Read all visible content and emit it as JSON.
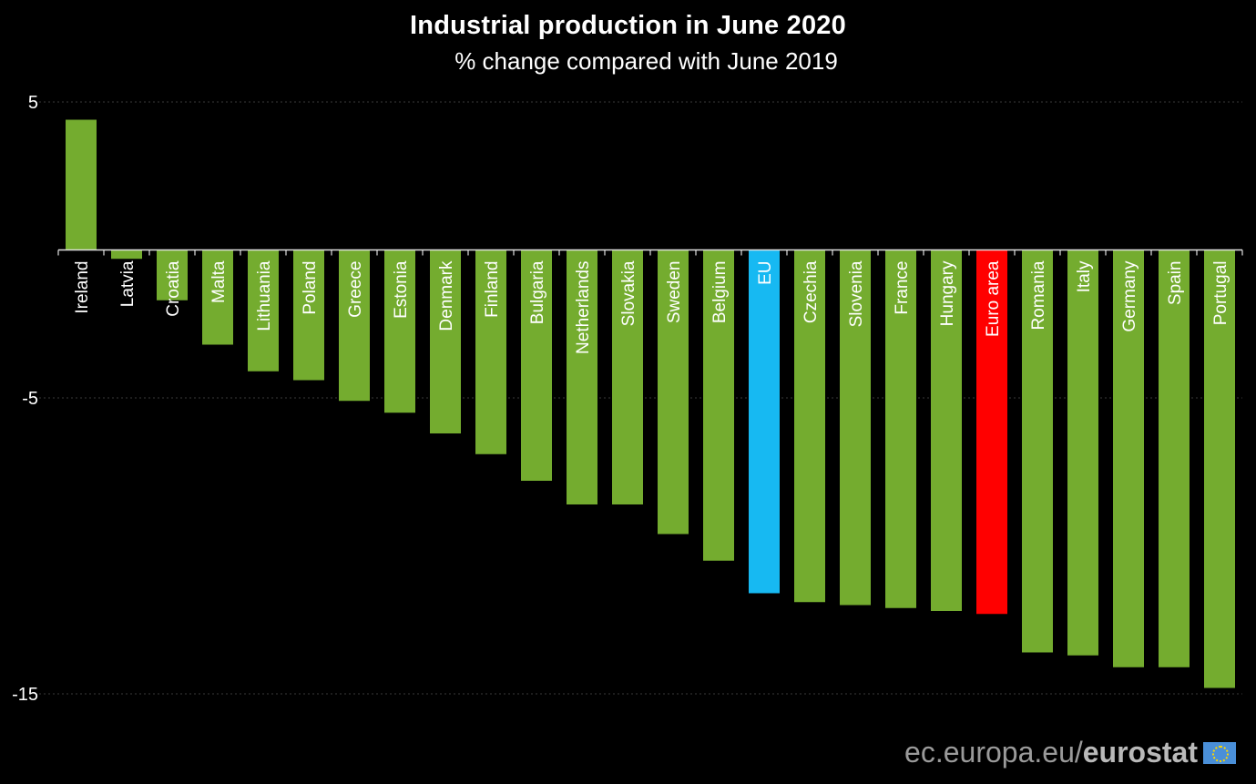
{
  "chart_data": {
    "type": "bar",
    "title": "Industrial production in June 2020",
    "subtitle": "% change compared with June 2019",
    "xlabel": "",
    "ylabel": "",
    "ylim": [
      -15,
      5
    ],
    "yticks": [
      5,
      -5,
      -15
    ],
    "grid": true,
    "categories": [
      "Ireland",
      "Latvia",
      "Croatia",
      "Malta",
      "Lithuania",
      "Poland",
      "Greece",
      "Estonia",
      "Denmark",
      "Finland",
      "Bulgaria",
      "Netherlands",
      "Slovakia",
      "Sweden",
      "Belgium",
      "EU",
      "Czechia",
      "Slovenia",
      "France",
      "Hungary",
      "Euro area",
      "Romania",
      "Italy",
      "Germany",
      "Spain",
      "Portugal"
    ],
    "values": [
      4.4,
      -0.3,
      -1.7,
      -3.2,
      -4.1,
      -4.4,
      -5.1,
      -5.5,
      -6.2,
      -6.9,
      -7.8,
      -8.6,
      -8.6,
      -9.6,
      -10.5,
      -11.6,
      -11.9,
      -12.0,
      -12.1,
      -12.2,
      -12.3,
      -13.6,
      -13.7,
      -14.1,
      -14.1,
      -14.8
    ],
    "colors": {
      "default": "#74ac2f",
      "EU": "#17b9f2",
      "Euro area": "#ff0000"
    }
  },
  "footer": {
    "domain": "ec.europa.eu/",
    "brand": "eurostat",
    "flag_icon": "eu-flag-icon"
  }
}
